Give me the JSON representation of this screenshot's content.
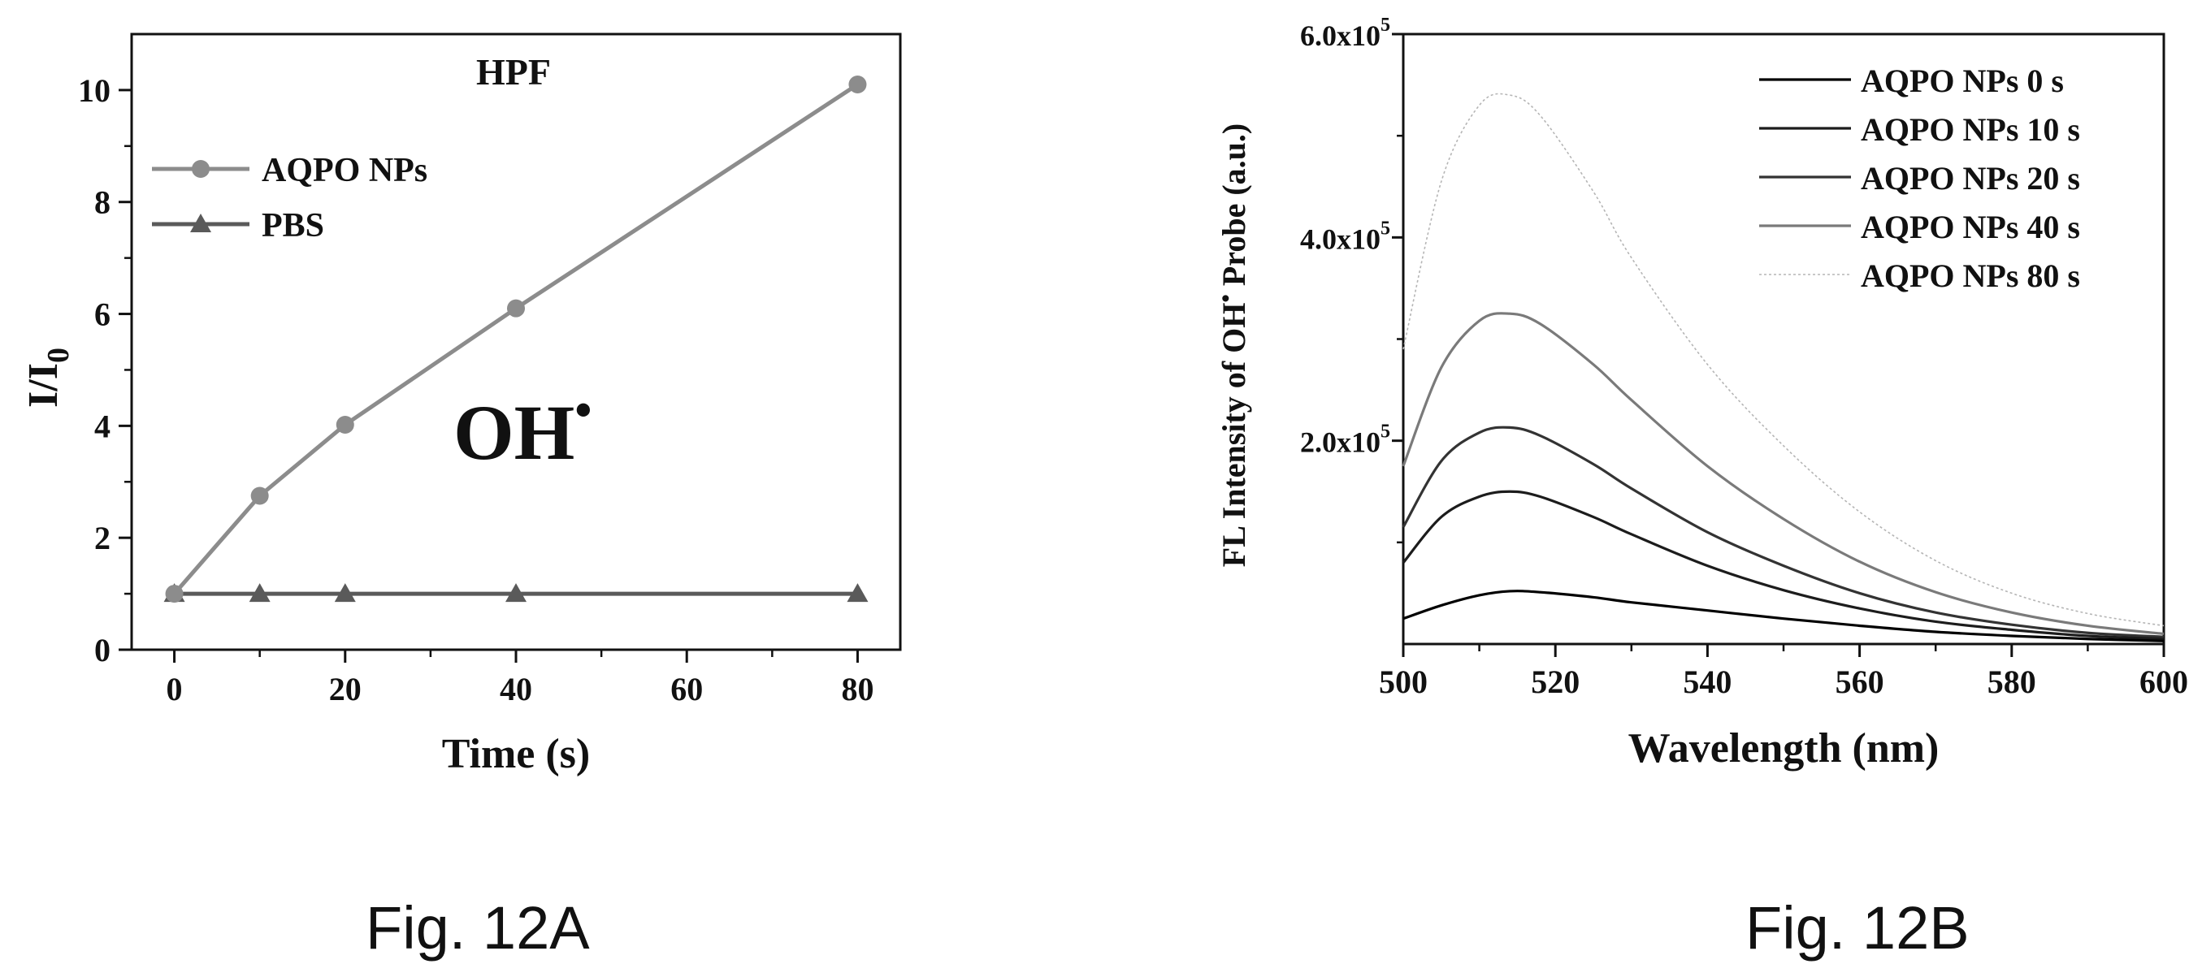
{
  "panel_a": {
    "caption": "Fig. 12A",
    "annotation": "OH",
    "annotation_mark": "•"
  },
  "panel_b": {
    "caption": "Fig. 12B",
    "ylabel_part1": "FL Intensity of OH",
    "ylabel_mark": "•",
    "ylabel_part2": " Probe (a.u.)"
  },
  "colors": {
    "axis": "#111111",
    "aqpo_nps": "#8c8c8c",
    "pbs": "#5a5a5a",
    "series_0s": "#000000",
    "series_10s": "#1c1c1c",
    "series_20s": "#333333",
    "series_40s": "#7a7a7a",
    "series_80s": "#b5b5b5"
  },
  "chart_data": [
    {
      "type": "line",
      "title": "HPF",
      "xlabel": "Time (s)",
      "ylabel_main": "I/I",
      "ylabel_sub": "0",
      "xlim": [
        -5,
        85
      ],
      "ylim": [
        0,
        11
      ],
      "xticks": [
        0,
        20,
        40,
        60,
        80
      ],
      "yticks": [
        0,
        2,
        4,
        6,
        8,
        10
      ],
      "grid": false,
      "legend_position": "top-left",
      "series": [
        {
          "name": "AQPO NPs",
          "marker": "circle",
          "color_key": "aqpo_nps",
          "x": [
            0,
            10,
            20,
            40,
            80
          ],
          "y": [
            1.0,
            2.75,
            4.02,
            6.1,
            10.1
          ]
        },
        {
          "name": "PBS",
          "marker": "triangle",
          "color_key": "pbs",
          "x": [
            0,
            10,
            20,
            40,
            80
          ],
          "y": [
            1.0,
            1.0,
            1.0,
            1.0,
            1.0
          ]
        }
      ]
    },
    {
      "type": "line",
      "title": "",
      "xlabel": "Wavelength (nm)",
      "xlim": [
        500,
        600
      ],
      "ylim": [
        0,
        600000
      ],
      "xticks": [
        500,
        520,
        540,
        560,
        580,
        600
      ],
      "yticks": [
        {
          "value": 200000,
          "mantissa": "2.0x10",
          "exp": "5"
        },
        {
          "value": 400000,
          "mantissa": "4.0x10",
          "exp": "5"
        },
        {
          "value": 600000,
          "mantissa": "6.0x10",
          "exp": "5"
        }
      ],
      "grid": false,
      "legend_position": "top-right",
      "x": [
        500,
        505,
        510,
        514,
        518,
        525,
        530,
        540,
        550,
        560,
        570,
        580,
        590,
        600
      ],
      "series": [
        {
          "name": "AQPO NPs 0 s",
          "color_key": "series_0s",
          "width": 3.2,
          "values": [
            25000,
            38000,
            48000,
            52000,
            51000,
            46000,
            41000,
            33000,
            25000,
            18000,
            12000,
            8000,
            5000,
            3000
          ]
        },
        {
          "name": "AQPO NPs 10 s",
          "color_key": "series_10s",
          "width": 3.2,
          "values": [
            80000,
            125000,
            145000,
            150000,
            145000,
            125000,
            108000,
            77000,
            53000,
            35000,
            22000,
            14000,
            8000,
            5000
          ]
        },
        {
          "name": "AQPO NPs 20 s",
          "color_key": "series_20s",
          "width": 3.2,
          "values": [
            115000,
            180000,
            208000,
            213000,
            205000,
            177000,
            153000,
            110000,
            77000,
            50000,
            31000,
            19000,
            11000,
            7000
          ]
        },
        {
          "name": "AQPO NPs 40 s",
          "color_key": "series_40s",
          "width": 3.2,
          "values": [
            175000,
            272000,
            318000,
            325000,
            315000,
            275000,
            240000,
            175000,
            123000,
            81000,
            51000,
            31000,
            18000,
            10000
          ]
        },
        {
          "name": "AQPO NPs 80 s",
          "color_key": "series_80s",
          "width": 1.6,
          "dotted": true,
          "values": [
            290000,
            455000,
            530000,
            540000,
            520000,
            445000,
            380000,
            275000,
            195000,
            130000,
            82000,
            50000,
            30000,
            18000
          ]
        }
      ]
    }
  ]
}
